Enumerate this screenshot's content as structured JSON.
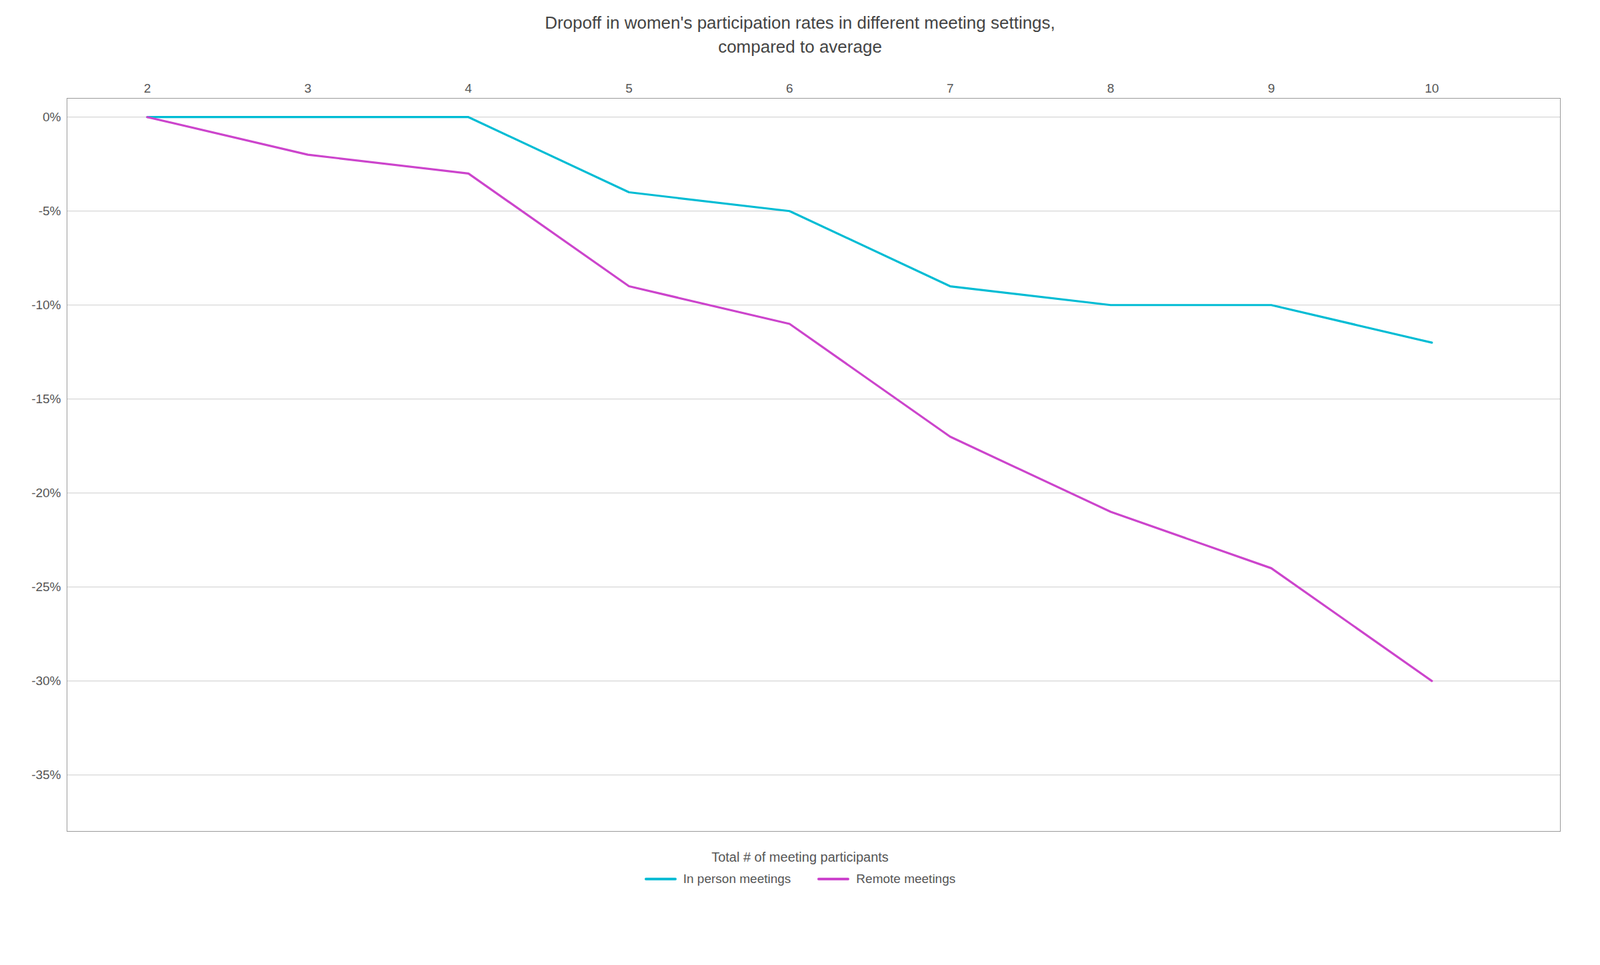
{
  "chart_data": {
    "type": "line",
    "title": "Dropoff in women's participation rates in different meeting settings,\ncompared to average",
    "xlabel": "Total # of meeting participants",
    "x": [
      2,
      3,
      4,
      5,
      6,
      7,
      8,
      9,
      10
    ],
    "series": [
      {
        "name": "In person meetings",
        "color": "#00bcd4",
        "values": [
          0,
          0,
          0,
          -4,
          -5,
          -9,
          -10,
          -10,
          -12
        ]
      },
      {
        "name": "Remote meetings",
        "color": "#cc44cc",
        "values": [
          0,
          -2,
          -3,
          -9,
          -11,
          -17,
          -21,
          -24,
          -30
        ]
      }
    ],
    "xlim": [
      1.5,
      10.8
    ],
    "xticks": [
      2,
      3,
      4,
      5,
      6,
      7,
      8,
      9,
      10
    ],
    "ylim": [
      -38,
      1
    ],
    "yticks": [
      {
        "value": 0,
        "label": "0%"
      },
      {
        "value": -5,
        "label": "-5%"
      },
      {
        "value": -10,
        "label": "-10%"
      },
      {
        "value": -15,
        "label": "-15%"
      },
      {
        "value": -20,
        "label": "-20%"
      },
      {
        "value": -25,
        "label": "-25%"
      },
      {
        "value": -30,
        "label": "-30%"
      },
      {
        "value": -35,
        "label": "-35%"
      }
    ],
    "grid": true,
    "legend": "bottom"
  }
}
